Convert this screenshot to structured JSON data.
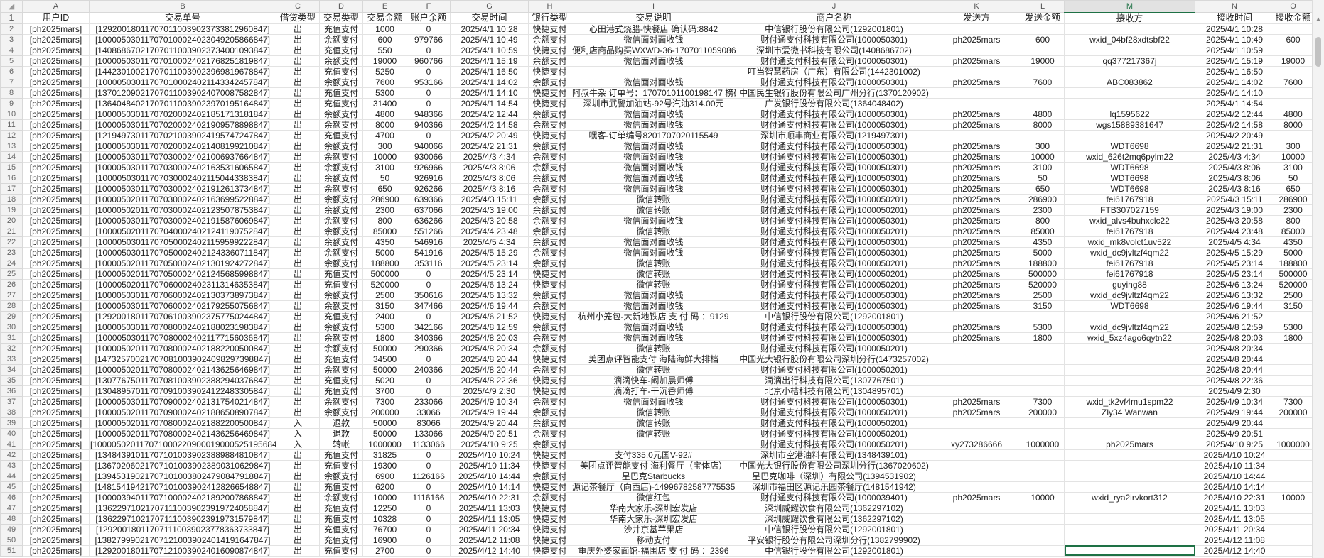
{
  "columns": [
    "A",
    "B",
    "C",
    "D",
    "E",
    "F",
    "G",
    "H",
    "I",
    "J",
    "K",
    "L",
    "M",
    "N",
    "O"
  ],
  "selected_column": "M",
  "accent_color": "#1e7145",
  "headers": [
    "用户ID",
    "交易单号",
    "借贷类型",
    "交易类型",
    "交易金额",
    "账户余额",
    "交易时间",
    "银行类型",
    "交易说明",
    "商户名称",
    "发送方",
    "发送金额",
    "接收方",
    "接收时间",
    "接收金额"
  ],
  "rows": [
    [
      "[ph2025mars]",
      "[129200180117070110039023733812960847]",
      "出",
      "充值支付",
      "1000",
      "0",
      "2025/4/1 10:28",
      "快捷支付",
      "心田港式烧腊-快餐店 确认码:8842",
      "中信银行股份有限公司(1292001801)",
      "",
      "",
      "",
      "2025/4/1 10:28",
      ""
    ],
    [
      "[ph2025mars]",
      "[100005030117070100024023049205866847]",
      "出",
      "余额支付",
      "600",
      "979766",
      "2025/4/1 10:49",
      "余额支付",
      "微信面对面收钱",
      "财付通支付科技有限公司(1000050301)",
      "ph2025mars",
      "600",
      "wxid_04bf28xdtsbf22",
      "2025/4/1 10:49",
      "600"
    ],
    [
      "[ph2025mars]",
      "[140868670217070110039023734001093847]",
      "出",
      "充值支付",
      "550",
      "0",
      "2025/4/1 10:59",
      "快捷支付",
      "便利店商品购买WXWD-36-17070110590864",
      "深圳市爱微书科技有限公司(1408686702)",
      "",
      "",
      "",
      "2025/4/1 10:59",
      ""
    ],
    [
      "[ph2025mars]",
      "[100005030117070100024021768251819847]",
      "出",
      "余额支付",
      "19000",
      "960766",
      "2025/4/1 15:19",
      "余额支付",
      "微信面对面收钱",
      "财付通支付科技有限公司(1000050301)",
      "ph2025mars",
      "19000",
      "qq377217367j",
      "2025/4/1 15:19",
      "19000"
    ],
    [
      "[ph2025mars]",
      "[144230100217070110039023969819678847]",
      "出",
      "充值支付",
      "5250",
      "0",
      "2025/4/1 16:50",
      "快捷支付",
      "",
      "叮当智慧药房（广东）有限公司(1442301002)",
      "",
      "",
      "",
      "2025/4/1 16:50",
      ""
    ],
    [
      "[ph2025mars]",
      "[100005030117070100024021143342457847]",
      "出",
      "余额支付",
      "7600",
      "953166",
      "2025/4/1 14:02",
      "余额支付",
      "微信面对面收钱",
      "财付通支付科技有限公司(1000050301)",
      "ph2025mars",
      "7600",
      "ABC083862",
      "2025/4/1 14:02",
      "7600"
    ],
    [
      "[ph2025mars]",
      "[137012090217070110039024070087582847]",
      "出",
      "充值支付",
      "5300",
      "0",
      "2025/4/1 14:10",
      "快捷支付",
      "阿叔牛杂 订单号：17070101100198147 榜码",
      "中国民生银行股份有限公司广州分行(1370120902)",
      "",
      "",
      "",
      "2025/4/1 14:10",
      ""
    ],
    [
      "[ph2025mars]",
      "[136404840217070110039023970195164847]",
      "出",
      "充值支付",
      "31400",
      "0",
      "2025/4/1 14:54",
      "快捷支付",
      "深圳市武警加油站-92号汽油314.00元",
      "广发银行股份有限公司(1364048402)",
      "",
      "",
      "",
      "2025/4/1 14:54",
      ""
    ],
    [
      "[ph2025mars]",
      "[100005030117070200024021851713181847]",
      "出",
      "余额支付",
      "4800",
      "948366",
      "2025/4/2 12:44",
      "余额支付",
      "微信面对面收钱",
      "财付通支付科技有限公司(1000050301)",
      "ph2025mars",
      "4800",
      "lq1595622",
      "2025/4/2 12:44",
      "4800"
    ],
    [
      "[ph2025mars]",
      "[100005030117070200024021909578898847]",
      "出",
      "余额支付",
      "8000",
      "940366",
      "2025/4/2 14:58",
      "余额支付",
      "微信面对面收钱",
      "财付通支付科技有限公司(1000050301)",
      "ph2025mars",
      "8000",
      "wgs15889381647",
      "2025/4/2 14:58",
      "8000"
    ],
    [
      "[ph2025mars]",
      "[121949730117070210039024195747247847]",
      "出",
      "充值支付",
      "4700",
      "0",
      "2025/4/2 20:49",
      "快捷支付",
      "嘿客-订单编号8201707020115549",
      "深圳市顺丰商业有限公司(1219497301)",
      "",
      "",
      "",
      "2025/4/2 20:49",
      ""
    ],
    [
      "[ph2025mars]",
      "[100005030117070200024021408199210847]",
      "出",
      "余额支付",
      "300",
      "940066",
      "2025/4/2 21:31",
      "余额支付",
      "微信面对面收钱",
      "财付通支付科技有限公司(1000050301)",
      "ph2025mars",
      "300",
      "WDT6698",
      "2025/4/2 21:31",
      "300"
    ],
    [
      "[ph2025mars]",
      "[100005030117070300024021006937664847]",
      "出",
      "余额支付",
      "10000",
      "930066",
      "2025/4/3 4:34",
      "余额支付",
      "微信面对面收钱",
      "财付通支付科技有限公司(1000050301)",
      "ph2025mars",
      "10000",
      "wxid_626t2mq6pylm22",
      "2025/4/3 4:34",
      "10000"
    ],
    [
      "[ph2025mars]",
      "[100005030117070300024021635316065847]",
      "出",
      "余额支付",
      "3100",
      "926966",
      "2025/4/3 8:06",
      "余额支付",
      "微信面对面收钱",
      "财付通支付科技有限公司(1000050301)",
      "ph2025mars",
      "3100",
      "WDT6698",
      "2025/4/3 8:06",
      "3100"
    ],
    [
      "[ph2025mars]",
      "[100005030117070300024021150443383847]",
      "出",
      "余额支付",
      "50",
      "926916",
      "2025/4/3 8:06",
      "余额支付",
      "微信面对面收钱",
      "财付通支付科技有限公司(1000050301)",
      "ph2025mars",
      "50",
      "WDT6698",
      "2025/4/3 8:06",
      "50"
    ],
    [
      "[ph2025mars]",
      "[100005030117070300024021912613734847]",
      "出",
      "余额支付",
      "650",
      "926266",
      "2025/4/3 8:16",
      "余额支付",
      "微信面对面收钱",
      "财付通支付科技有限公司(1000050301)",
      "ph2025mars",
      "650",
      "WDT6698",
      "2025/4/3 8:16",
      "650"
    ],
    [
      "[ph2025mars]",
      "[100005020117070300024021636995228847]",
      "出",
      "余额支付",
      "286900",
      "639366",
      "2025/4/3 15:11",
      "余额支付",
      "微信转账",
      "财付通支付科技有限公司(1000050201)",
      "ph2025mars",
      "286900",
      "fei61767918",
      "2025/4/3 15:11",
      "286900"
    ],
    [
      "[ph2025mars]",
      "[100005020117070300024021235078753847]",
      "出",
      "余额支付",
      "2300",
      "637066",
      "2025/4/3 19:00",
      "余额支付",
      "微信转账",
      "财付通支付科技有限公司(1000050201)",
      "ph2025mars",
      "2300",
      "FTB307027159",
      "2025/4/3 19:00",
      "2300"
    ],
    [
      "[ph2025mars]",
      "[100005030117070300024021915876069847]",
      "出",
      "余额支付",
      "800",
      "636266",
      "2025/4/3 20:58",
      "余额支付",
      "微信面对面收钱",
      "财付通支付科技有限公司(1000050301)",
      "ph2025mars",
      "800",
      "wxid_alvs4buhxclc22",
      "2025/4/3 20:58",
      "800"
    ],
    [
      "[ph2025mars]",
      "[100005020117070400024021241190752847]",
      "出",
      "余额支付",
      "85000",
      "551266",
      "2025/4/4 23:48",
      "余额支付",
      "微信转账",
      "财付通支付科技有限公司(1000050201)",
      "ph2025mars",
      "85000",
      "fei61767918",
      "2025/4/4 23:48",
      "85000"
    ],
    [
      "[ph2025mars]",
      "[100005030117070500024021159599222847]",
      "出",
      "余额支付",
      "4350",
      "546916",
      "2025/4/5 4:34",
      "余额支付",
      "微信面对面收钱",
      "财付通支付科技有限公司(1000050301)",
      "ph2025mars",
      "4350",
      "wxid_mk8volct1uv522",
      "2025/4/5 4:34",
      "4350"
    ],
    [
      "[ph2025mars]",
      "[100005030117070500024021243360711847]",
      "出",
      "余额支付",
      "5000",
      "541916",
      "2025/4/5 15:29",
      "余额支付",
      "微信面对面收钱",
      "财付通支付科技有限公司(1000050301)",
      "ph2025mars",
      "5000",
      "wxid_dc9jvltzf4qm22",
      "2025/4/5 15:29",
      "5000"
    ],
    [
      "[ph2025mars]",
      "[100005020117070500024021301924272847]",
      "出",
      "余额支付",
      "188800",
      "353116",
      "2025/4/5 23:14",
      "余额支付",
      "微信转账",
      "财付通支付科技有限公司(1000050201)",
      "ph2025mars",
      "188800",
      "fei61767918",
      "2025/4/5 23:14",
      "188800"
    ],
    [
      "[ph2025mars]",
      "[100005020117070500024021245685998847]",
      "出",
      "充值支付",
      "500000",
      "0",
      "2025/4/5 23:14",
      "快捷支付",
      "微信转账",
      "财付通支付科技有限公司(1000050201)",
      "ph2025mars",
      "500000",
      "fei61767918",
      "2025/4/5 23:14",
      "500000"
    ],
    [
      "[ph2025mars]",
      "[100005020117070600024023113146353847]",
      "出",
      "充值支付",
      "520000",
      "0",
      "2025/4/6 13:24",
      "快捷支付",
      "微信转账",
      "财付通支付科技有限公司(1000050201)",
      "ph2025mars",
      "520000",
      "guying88",
      "2025/4/6 13:24",
      "520000"
    ],
    [
      "[ph2025mars]",
      "[100005030117070600024021303738973847]",
      "出",
      "余额支付",
      "2500",
      "350616",
      "2025/4/6 13:32",
      "余额支付",
      "微信面对面收钱",
      "财付通支付科技有限公司(1000050301)",
      "ph2025mars",
      "2500",
      "wxid_dc9jvltzf4qm22",
      "2025/4/6 13:32",
      "2500"
    ],
    [
      "[ph2025mars]",
      "[100005030117070600024021792550756847]",
      "出",
      "余额支付",
      "3150",
      "347466",
      "2025/4/6 19:44",
      "余额支付",
      "微信面对面收钱",
      "财付通支付科技有限公司(1000050301)",
      "ph2025mars",
      "3150",
      "WDT6698",
      "2025/4/6 19:44",
      "3150"
    ],
    [
      "[ph2025mars]",
      "[129200180117070610039023757750244847]",
      "出",
      "充值支付",
      "2400",
      "0",
      "2025/4/6 21:52",
      "快捷支付",
      "杭州小笼包-大新地铁店 支 付 码 ：9129",
      "中信银行股份有限公司(1292001801)",
      "",
      "",
      "",
      "2025/4/6 21:52",
      ""
    ],
    [
      "[ph2025mars]",
      "[100005030117070800024021880231983847]",
      "出",
      "余额支付",
      "5300",
      "342166",
      "2025/4/8 12:59",
      "余额支付",
      "微信面对面收钱",
      "财付通支付科技有限公司(1000050301)",
      "ph2025mars",
      "5300",
      "wxid_dc9jvltzf4qm22",
      "2025/4/8 12:59",
      "5300"
    ],
    [
      "[ph2025mars]",
      "[100005030117070800024021177156036847]",
      "出",
      "余额支付",
      "1800",
      "340366",
      "2025/4/8 20:03",
      "余额支付",
      "微信面对面收钱",
      "财付通支付科技有限公司(1000050301)",
      "ph2025mars",
      "1800",
      "wxid_5xz4ago6qytn22",
      "2025/4/8 20:03",
      "1800"
    ],
    [
      "[ph2025mars]",
      "[100005020117070800024021882200500847]",
      "出",
      "余额支付",
      "50000",
      "290366",
      "2025/4/8 20:34",
      "余额支付",
      "微信转账",
      "财付通支付科技有限公司(1000050201)",
      "",
      "",
      "",
      "2025/4/8 20:34",
      ""
    ],
    [
      "[ph2025mars]",
      "[147325700217070810039024098297398847]",
      "出",
      "充值支付",
      "34500",
      "0",
      "2025/4/8 20:44",
      "快捷支付",
      "美团点评智能支付 海陆海鲜大排档",
      "中国光大银行股份有限公司深圳分行(1473257002)",
      "",
      "",
      "",
      "2025/4/8 20:44",
      ""
    ],
    [
      "[ph2025mars]",
      "[100005020117070800024021436256469847]",
      "出",
      "余额支付",
      "50000",
      "240366",
      "2025/4/8 20:44",
      "余额支付",
      "微信转账",
      "财付通支付科技有限公司(1000050201)",
      "",
      "",
      "",
      "2025/4/8 20:44",
      ""
    ],
    [
      "[ph2025mars]",
      "[130776750117070810039023882940376847]",
      "出",
      "充值支付",
      "5020",
      "0",
      "2025/4/8 22:36",
      "快捷支付",
      "滴滴快车-阚加晨师傅",
      "滴滴出行科技有限公司(1307767501)",
      "",
      "",
      "",
      "2025/4/8 22:36",
      ""
    ],
    [
      "[ph2025mars]",
      "[130489570117070910039024122483305847]",
      "出",
      "充值支付",
      "3700",
      "0",
      "2025/4/9 2:30",
      "快捷支付",
      "滴滴打车-干沉香师傅",
      "北京小桔科技有限公司(1304895701)",
      "",
      "",
      "",
      "2025/4/9 2:30",
      ""
    ],
    [
      "[ph2025mars]",
      "[100005030117070900024021317540214847]",
      "出",
      "余额支付",
      "7300",
      "233066",
      "2025/4/9 10:34",
      "余额支付",
      "微信面对面收钱",
      "财付通支付科技有限公司(1000050301)",
      "ph2025mars",
      "7300",
      "wxid_tk2vf4mu1spm22",
      "2025/4/9 10:34",
      "7300"
    ],
    [
      "[ph2025mars]",
      "[100005020117070900024021886508907847]",
      "出",
      "余额支付",
      "200000",
      "33066",
      "2025/4/9 19:44",
      "余额支付",
      "微信转账",
      "财付通支付科技有限公司(1000050201)",
      "ph2025mars",
      "200000",
      "Zly34 Wanwan",
      "2025/4/9 19:44",
      "200000"
    ],
    [
      "[ph2025mars]",
      "[100005020117070800024021882200500847]",
      "入",
      "退款",
      "50000",
      "83066",
      "2025/4/9 20:44",
      "余额支付",
      "微信转账",
      "财付通支付科技有限公司(1000050201)",
      "",
      "",
      "",
      "2025/4/9 20:44",
      ""
    ],
    [
      "[ph2025mars]",
      "[100005020117070800024021436256469847]",
      "入",
      "退款",
      "50000",
      "133066",
      "2025/4/9 20:51",
      "余额支付",
      "微信转账",
      "财付通支付科技有限公司(1000050201)",
      "",
      "",
      "",
      "2025/4/9 20:51",
      ""
    ],
    [
      "[ph2025mars]",
      "[1000050201170710002209000190005251956847]",
      "入",
      "转帐",
      "1000000",
      "1133066",
      "2025/4/10 9:25",
      "余额支付",
      "",
      "财付通支付科技有限公司(1000050201)",
      "xy273286666",
      "1000000",
      "ph2025mars",
      "2025/4/10 9:25",
      "1000000"
    ],
    [
      "[ph2025mars]",
      "[134843910117071010039023889884810847]",
      "出",
      "充值支付",
      "31825",
      "0",
      "2025/4/10 10:24",
      "快捷支付",
      "支付335.0元国V-92#",
      "深圳市空港油料有限公司(1348439101)",
      "",
      "",
      "",
      "2025/4/10 10:24",
      ""
    ],
    [
      "[ph2025mars]",
      "[136702060217071010039023890310629847]",
      "出",
      "充值支付",
      "19300",
      "0",
      "2025/4/10 11:34",
      "快捷支付",
      "美团点评智能支付 海利餐厅（宝体店）",
      "中国光大银行股份有限公司深圳分行(1367020602)",
      "",
      "",
      "",
      "2025/4/10 11:34",
      ""
    ],
    [
      "[ph2025mars]",
      "[139453190217071010038024790847918847]",
      "出",
      "余额支付",
      "6900",
      "1126166",
      "2025/4/10 14:44",
      "余额支付",
      "星巴克Starbucks",
      "星巴克咖啡（深圳）有限公司(1394531902)",
      "",
      "",
      "",
      "2025/4/10 14:44",
      ""
    ],
    [
      "[ph2025mars]",
      "[148154194217071010039024128266548847]",
      "出",
      "充值支付",
      "6200",
      "0",
      "2025/4/10 14:14",
      "快捷支付",
      "源记茶餐厅（向西店)-149967825877755352",
      "深圳市福田区源记乐园茶餐厅(1481541942)",
      "",
      "",
      "",
      "2025/4/10 14:14",
      ""
    ],
    [
      "[ph2025mars]",
      "[100003940117071000024021892007868847]",
      "出",
      "余额支付",
      "10000",
      "1116166",
      "2025/4/10 22:31",
      "余额支付",
      "微信红包",
      "财付通支付科技有限公司(1000039401)",
      "ph2025mars",
      "10000",
      "wxid_rya2irvkort312",
      "2025/4/10 22:31",
      "10000"
    ],
    [
      "[ph2025mars]",
      "[136229710217071110039023919724058847]",
      "出",
      "充值支付",
      "12250",
      "0",
      "2025/4/11 13:03",
      "快捷支付",
      "华南大家乐-深圳宏发店",
      "深圳威耀饮食有限公司(1362297102)",
      "",
      "",
      "",
      "2025/4/11 13:03",
      ""
    ],
    [
      "[ph2025mars]",
      "[136229710217071110039023919731579847]",
      "出",
      "充值支付",
      "10328",
      "0",
      "2025/4/11 13:05",
      "快捷支付",
      "华南大家乐-深圳宏发店",
      "深圳威耀饮食有限公司(1362297102)",
      "",
      "",
      "",
      "2025/4/11 13:05",
      ""
    ],
    [
      "[ph2025mars]",
      "[129200180117071110039023778363733847]",
      "出",
      "充值支付",
      "76700",
      "0",
      "2025/4/11 20:34",
      "快捷支付",
      "沙井京基苹果店",
      "中信银行股份有限公司(1292001801)",
      "",
      "",
      "",
      "2025/4/11 20:34",
      ""
    ],
    [
      "[ph2025mars]",
      "[138279990217071210039024014191647847]",
      "出",
      "充值支付",
      "16900",
      "0",
      "2025/4/12 11:08",
      "快捷支付",
      "移动支付",
      "平安银行股份有限公司深圳分行(1382799902)",
      "",
      "",
      "",
      "2025/4/12 11:08",
      ""
    ],
    [
      "[ph2025mars]",
      "[129200180117071210039024016090874847]",
      "出",
      "充值支付",
      "2700",
      "0",
      "2025/4/12 14:40",
      "快捷支付",
      "重庆外婆家面馆-福围店 支 付 码 ：2396",
      "中信银行股份有限公司(1292001801)",
      "",
      "",
      "",
      "2025/4/12 14:40",
      ""
    ]
  ]
}
